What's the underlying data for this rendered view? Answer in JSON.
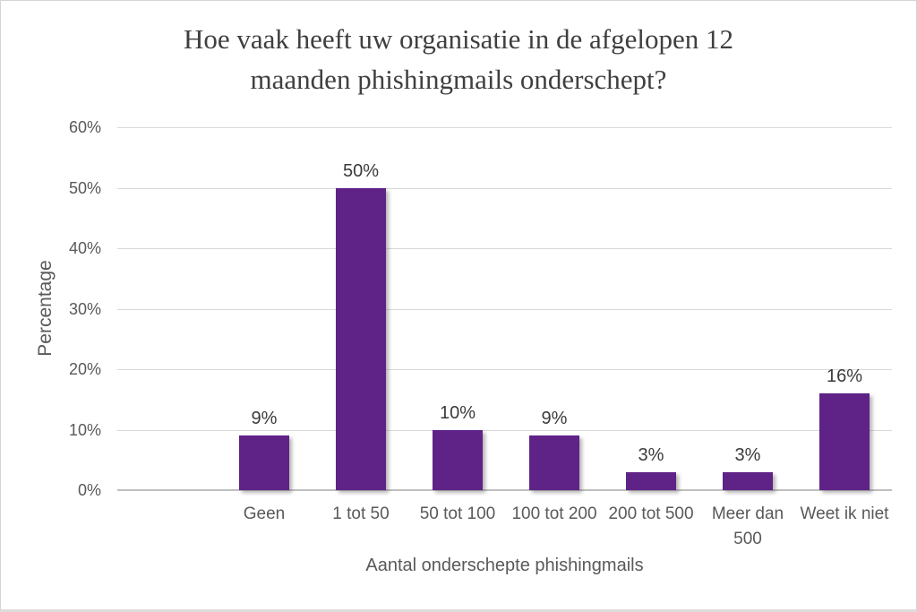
{
  "chart_data": {
    "type": "bar",
    "title": "Hoe vaak heeft uw organisatie in de afgelopen 12 maanden phishingmails onderschept?",
    "title_lines": [
      "Hoe vaak heeft uw organisatie in de afgelopen 12",
      "maanden phishingmails onderschept?"
    ],
    "xlabel": "Aantal onderschepte phishingmails",
    "ylabel": "Percentage",
    "categories": [
      "Geen",
      "1 tot 50",
      "50 tot 100",
      "100 tot 200",
      "200 tot 500",
      "Meer dan 500",
      "Weet ik niet"
    ],
    "category_lines": [
      [
        "Geen"
      ],
      [
        "1 tot 50"
      ],
      [
        "50 tot 100"
      ],
      [
        "100 tot 200"
      ],
      [
        "200 tot 500"
      ],
      [
        "Meer dan",
        "500"
      ],
      [
        "Weet ik niet"
      ]
    ],
    "values": [
      9,
      50,
      10,
      9,
      3,
      3,
      16
    ],
    "data_labels": [
      "9%",
      "50%",
      "10%",
      "9%",
      "3%",
      "3%",
      "16%"
    ],
    "ylim": [
      0,
      60
    ],
    "ytick_step": 10,
    "ytick_labels": [
      "0%",
      "10%",
      "20%",
      "30%",
      "40%",
      "50%",
      "60%"
    ],
    "grid": true,
    "legend": false,
    "colors": {
      "bar": "#5F2387",
      "gridline": "#d9d9d9",
      "zero_line": "#bfbfbf",
      "title_text": "#3f3f3f",
      "axis_text": "#595959",
      "data_label_text": "#3a3a3a",
      "background": "#ffffff"
    }
  }
}
